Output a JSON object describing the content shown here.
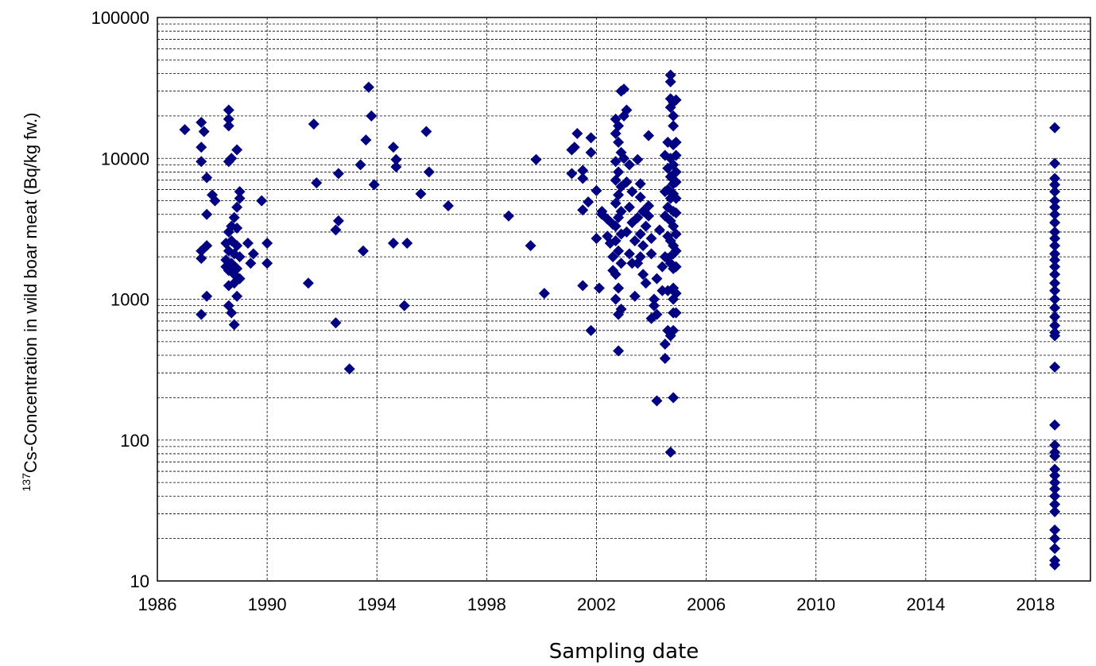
{
  "chart_data": {
    "type": "scatter",
    "xlabel": "Sampling date",
    "ylabel_sup": "137",
    "ylabel": "Cs-Concentration in wild boar meat (Bq/kg fw.)",
    "xlim": [
      1986,
      2020
    ],
    "ylim": [
      10,
      100000
    ],
    "yscale": "log",
    "x_ticks": [
      "1986",
      "1990",
      "1994",
      "1998",
      "2002",
      "2006",
      "2010",
      "2014",
      "2018"
    ],
    "y_ticks": [
      "10",
      "100",
      "1000",
      "10000",
      "100000"
    ],
    "grid": true,
    "marker": "diamond",
    "marker_color": "#000080",
    "points": [
      [
        1987.0,
        16000
      ],
      [
        1987.6,
        18000
      ],
      [
        1987.7,
        15500
      ],
      [
        1987.6,
        12000
      ],
      [
        1987.6,
        9500
      ],
      [
        1987.8,
        7300
      ],
      [
        1988.0,
        5500
      ],
      [
        1988.1,
        5000
      ],
      [
        1987.8,
        4000
      ],
      [
        1987.8,
        2400
      ],
      [
        1987.6,
        2200
      ],
      [
        1987.6,
        1950
      ],
      [
        1987.8,
        1050
      ],
      [
        1987.6,
        780
      ],
      [
        1988.6,
        22000
      ],
      [
        1988.6,
        19000
      ],
      [
        1988.6,
        17000
      ],
      [
        1988.9,
        11500
      ],
      [
        1988.7,
        10000
      ],
      [
        1988.6,
        9500
      ],
      [
        1989.0,
        5800
      ],
      [
        1989.0,
        5200
      ],
      [
        1988.9,
        4500
      ],
      [
        1988.8,
        3800
      ],
      [
        1988.7,
        3300
      ],
      [
        1988.6,
        3000
      ],
      [
        1988.9,
        3200
      ],
      [
        1988.5,
        2500
      ],
      [
        1988.7,
        2600
      ],
      [
        1988.9,
        2400
      ],
      [
        1988.6,
        2200
      ],
      [
        1988.8,
        2100
      ],
      [
        1988.5,
        1900
      ],
      [
        1989.0,
        2000
      ],
      [
        1988.7,
        1800
      ],
      [
        1988.5,
        1700
      ],
      [
        1988.9,
        1650
      ],
      [
        1988.6,
        1600
      ],
      [
        1988.8,
        1500
      ],
      [
        1989.0,
        1400
      ],
      [
        1988.6,
        1250
      ],
      [
        1988.8,
        1300
      ],
      [
        1988.9,
        1050
      ],
      [
        1988.6,
        900
      ],
      [
        1988.7,
        800
      ],
      [
        1988.8,
        660
      ],
      [
        1989.3,
        2500
      ],
      [
        1989.4,
        1800
      ],
      [
        1989.5,
        2100
      ],
      [
        1989.8,
        5000
      ],
      [
        1990.0,
        2500
      ],
      [
        1990.0,
        1800
      ],
      [
        1991.5,
        1300
      ],
      [
        1991.7,
        17500
      ],
      [
        1991.8,
        6700
      ],
      [
        1992.5,
        3100
      ],
      [
        1992.6,
        3600
      ],
      [
        1992.6,
        7800
      ],
      [
        1992.5,
        680
      ],
      [
        1993.0,
        320
      ],
      [
        1993.4,
        9000
      ],
      [
        1993.6,
        13500
      ],
      [
        1993.7,
        32000
      ],
      [
        1993.8,
        20000
      ],
      [
        1993.9,
        6500
      ],
      [
        1993.5,
        2200
      ],
      [
        1994.6,
        12000
      ],
      [
        1994.7,
        9800
      ],
      [
        1994.7,
        8700
      ],
      [
        1994.6,
        2500
      ],
      [
        1995.1,
        2500
      ],
      [
        1995.0,
        900
      ],
      [
        1995.6,
        5600
      ],
      [
        1995.8,
        15500
      ],
      [
        1995.9,
        8000
      ],
      [
        1996.6,
        4600
      ],
      [
        1998.8,
        3900
      ],
      [
        1999.6,
        2400
      ],
      [
        1999.8,
        9800
      ],
      [
        2000.1,
        1100
      ],
      [
        2001.1,
        11500
      ],
      [
        2001.2,
        12000
      ],
      [
        2001.3,
        15000
      ],
      [
        2001.1,
        7800
      ],
      [
        2001.5,
        8200
      ],
      [
        2001.5,
        7200
      ],
      [
        2001.5,
        4300
      ],
      [
        2001.8,
        14000
      ],
      [
        2001.8,
        11000
      ],
      [
        2001.7,
        4900
      ],
      [
        2001.5,
        1250
      ],
      [
        2001.8,
        600
      ],
      [
        2002.0,
        5900
      ],
      [
        2002.0,
        2700
      ],
      [
        2002.1,
        1200
      ],
      [
        2002.2,
        4200
      ],
      [
        2002.2,
        4000
      ],
      [
        2002.4,
        3700
      ],
      [
        2002.4,
        2800
      ],
      [
        2002.5,
        2500
      ],
      [
        2002.6,
        3400
      ],
      [
        2002.6,
        2000
      ],
      [
        2002.6,
        1600
      ],
      [
        2002.7,
        19000
      ],
      [
        2002.8,
        17000
      ],
      [
        2002.7,
        15000
      ],
      [
        2002.8,
        13000
      ],
      [
        2002.9,
        11000
      ],
      [
        2002.7,
        9500
      ],
      [
        2002.8,
        8000
      ],
      [
        2002.7,
        7000
      ],
      [
        2002.9,
        6300
      ],
      [
        2002.8,
        5500
      ],
      [
        2002.7,
        4800
      ],
      [
        2002.9,
        4200
      ],
      [
        2002.8,
        3800
      ],
      [
        2002.7,
        3300
      ],
      [
        2002.9,
        2900
      ],
      [
        2002.7,
        2600
      ],
      [
        2002.8,
        2200
      ],
      [
        2002.9,
        1800
      ],
      [
        2002.7,
        1500
      ],
      [
        2002.8,
        1200
      ],
      [
        2002.7,
        1000
      ],
      [
        2002.9,
        850
      ],
      [
        2002.8,
        780
      ],
      [
        2002.8,
        430
      ],
      [
        2002.9,
        30000
      ],
      [
        2003.0,
        31000
      ],
      [
        2003.0,
        20000
      ],
      [
        2003.1,
        22000
      ],
      [
        2003.0,
        10000
      ],
      [
        2003.2,
        9000
      ],
      [
        2003.1,
        6800
      ],
      [
        2003.3,
        5800
      ],
      [
        2003.2,
        4500
      ],
      [
        2003.3,
        3500
      ],
      [
        2003.1,
        3000
      ],
      [
        2003.4,
        2600
      ],
      [
        2003.2,
        2100
      ],
      [
        2003.3,
        1800
      ],
      [
        2003.4,
        1050
      ],
      [
        2003.5,
        9800
      ],
      [
        2003.6,
        6600
      ],
      [
        2003.6,
        5300
      ],
      [
        2003.7,
        4200
      ],
      [
        2003.5,
        3800
      ],
      [
        2003.8,
        3300
      ],
      [
        2003.6,
        2900
      ],
      [
        2003.7,
        2400
      ],
      [
        2003.6,
        2000
      ],
      [
        2003.5,
        1800
      ],
      [
        2003.7,
        1500
      ],
      [
        2003.8,
        1300
      ],
      [
        2003.9,
        14500
      ],
      [
        2003.9,
        4600
      ],
      [
        2003.9,
        3900
      ],
      [
        2004.0,
        2700
      ],
      [
        2004.0,
        2100
      ],
      [
        2004.1,
        1000
      ],
      [
        2004.1,
        900
      ],
      [
        2004.0,
        730
      ],
      [
        2004.2,
        1400
      ],
      [
        2004.2,
        190
      ],
      [
        2004.2,
        780
      ],
      [
        2004.3,
        3100
      ],
      [
        2004.4,
        1700
      ],
      [
        2004.4,
        1150
      ],
      [
        2004.5,
        10500
      ],
      [
        2004.5,
        5800
      ],
      [
        2004.5,
        3900
      ],
      [
        2004.5,
        2000
      ],
      [
        2004.5,
        480
      ],
      [
        2004.5,
        380
      ],
      [
        2004.6,
        13000
      ],
      [
        2004.6,
        8500
      ],
      [
        2004.6,
        6000
      ],
      [
        2004.6,
        4500
      ],
      [
        2004.6,
        2800
      ],
      [
        2004.6,
        1950
      ],
      [
        2004.6,
        1150
      ],
      [
        2004.6,
        600
      ],
      [
        2004.7,
        39000
      ],
      [
        2004.7,
        35000
      ],
      [
        2004.7,
        26500
      ],
      [
        2004.7,
        23000
      ],
      [
        2004.7,
        10000
      ],
      [
        2004.7,
        7400
      ],
      [
        2004.7,
        5200
      ],
      [
        2004.7,
        3600
      ],
      [
        2004.7,
        2600
      ],
      [
        2004.7,
        1800
      ],
      [
        2004.7,
        550
      ],
      [
        2004.7,
        82
      ],
      [
        2004.8,
        25000
      ],
      [
        2004.8,
        20000
      ],
      [
        2004.8,
        17000
      ],
      [
        2004.8,
        12500
      ],
      [
        2004.8,
        9000
      ],
      [
        2004.8,
        6600
      ],
      [
        2004.8,
        5600
      ],
      [
        2004.8,
        4200
      ],
      [
        2004.8,
        3300
      ],
      [
        2004.8,
        2400
      ],
      [
        2004.8,
        2100
      ],
      [
        2004.8,
        1650
      ],
      [
        2004.8,
        1200
      ],
      [
        2004.8,
        1000
      ],
      [
        2004.8,
        800
      ],
      [
        2004.8,
        600
      ],
      [
        2004.8,
        200
      ],
      [
        2004.9,
        26000
      ],
      [
        2004.9,
        13000
      ],
      [
        2004.9,
        10500
      ],
      [
        2004.9,
        8000
      ],
      [
        2004.9,
        6800
      ],
      [
        2004.9,
        5200
      ],
      [
        2004.9,
        4100
      ],
      [
        2004.9,
        2900
      ],
      [
        2004.9,
        2200
      ],
      [
        2004.9,
        1700
      ],
      [
        2004.9,
        1100
      ],
      [
        2004.9,
        800
      ],
      [
        2018.7,
        16500
      ],
      [
        2018.7,
        9200
      ],
      [
        2018.7,
        7200
      ],
      [
        2018.7,
        6500
      ],
      [
        2018.7,
        5800
      ],
      [
        2018.7,
        5000
      ],
      [
        2018.7,
        4500
      ],
      [
        2018.7,
        4000
      ],
      [
        2018.7,
        3500
      ],
      [
        2018.7,
        3000
      ],
      [
        2018.7,
        2700
      ],
      [
        2018.7,
        2400
      ],
      [
        2018.7,
        2100
      ],
      [
        2018.7,
        1900
      ],
      [
        2018.7,
        1700
      ],
      [
        2018.7,
        1500
      ],
      [
        2018.7,
        1300
      ],
      [
        2018.7,
        1150
      ],
      [
        2018.7,
        1000
      ],
      [
        2018.7,
        870
      ],
      [
        2018.7,
        750
      ],
      [
        2018.7,
        650
      ],
      [
        2018.7,
        580
      ],
      [
        2018.7,
        550
      ],
      [
        2018.7,
        330
      ],
      [
        2018.7,
        128
      ],
      [
        2018.7,
        92
      ],
      [
        2018.7,
        82
      ],
      [
        2018.7,
        77
      ],
      [
        2018.7,
        62
      ],
      [
        2018.7,
        56
      ],
      [
        2018.7,
        50
      ],
      [
        2018.7,
        45
      ],
      [
        2018.7,
        40
      ],
      [
        2018.7,
        35
      ],
      [
        2018.7,
        31
      ],
      [
        2018.7,
        23
      ],
      [
        2018.7,
        20
      ],
      [
        2018.7,
        17
      ],
      [
        2018.7,
        14
      ],
      [
        2018.7,
        13
      ]
    ]
  }
}
